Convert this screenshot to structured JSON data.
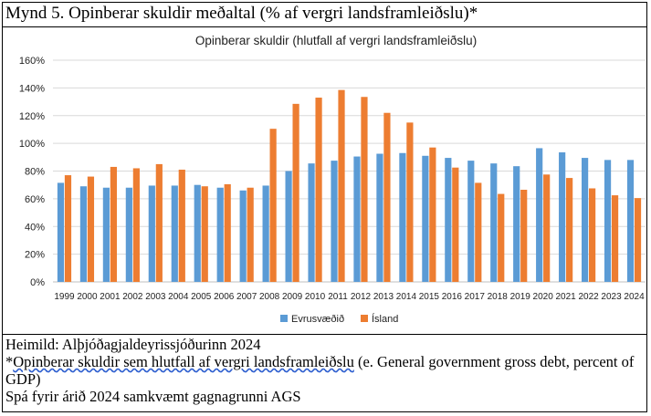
{
  "figure": {
    "label": "Mynd 5. Opinberar skuldir meðaltal (% af vergri landsframleiðslu)*"
  },
  "chart_data": {
    "type": "bar",
    "title": "Opinberar skuldir (hlutfall af vergri landsframleiðslu)",
    "categories": [
      "1999",
      "2000",
      "2001",
      "2002",
      "2003",
      "2004",
      "2005",
      "2006",
      "2007",
      "2008",
      "2009",
      "2010",
      "2011",
      "2012",
      "2013",
      "2014",
      "2015",
      "2016",
      "2017",
      "2018",
      "2019",
      "2020",
      "2021",
      "2022",
      "2023",
      "2024"
    ],
    "series": [
      {
        "name": "Evrusvæðið",
        "color": "#5b9bd5",
        "values": [
          71.5,
          69,
          68,
          68,
          69.5,
          69.5,
          70,
          68,
          66,
          69.5,
          80,
          85.5,
          87.5,
          90.5,
          92.5,
          93,
          91,
          89.5,
          87.5,
          85.5,
          83.5,
          96.5,
          93.5,
          89.5,
          88,
          88
        ]
      },
      {
        "name": "Ísland",
        "color": "#ed7d31",
        "values": [
          77,
          76,
          83,
          82,
          85,
          81,
          69,
          70.5,
          68,
          110.5,
          128.5,
          133,
          138.5,
          133.5,
          122,
          115,
          97,
          82.5,
          71.5,
          63.5,
          66.5,
          77.5,
          75,
          67.5,
          62.5,
          60.5
        ]
      }
    ],
    "ylim": [
      0,
      160
    ],
    "yticks": [
      "0%",
      "20%",
      "40%",
      "60%",
      "80%",
      "100%",
      "120%",
      "140%",
      "160%"
    ],
    "ytick_values": [
      0,
      20,
      40,
      60,
      80,
      100,
      120,
      140,
      160
    ],
    "grid": true,
    "legend_placement": "bottom-center"
  },
  "notes": {
    "source": "Heimild: Alþjóðagjaldeyrissjóðurinn 2024",
    "footnote_prefix": "*",
    "footnote_marked": "Opinberar skuldir sem hlutfall af vergri landsframleiðslu",
    "footnote_rest": " (e. General government gross debt, percent of GDP)",
    "forecast": "Spá fyrir árið 2024 samkvæmt gagnagrunni AGS"
  }
}
